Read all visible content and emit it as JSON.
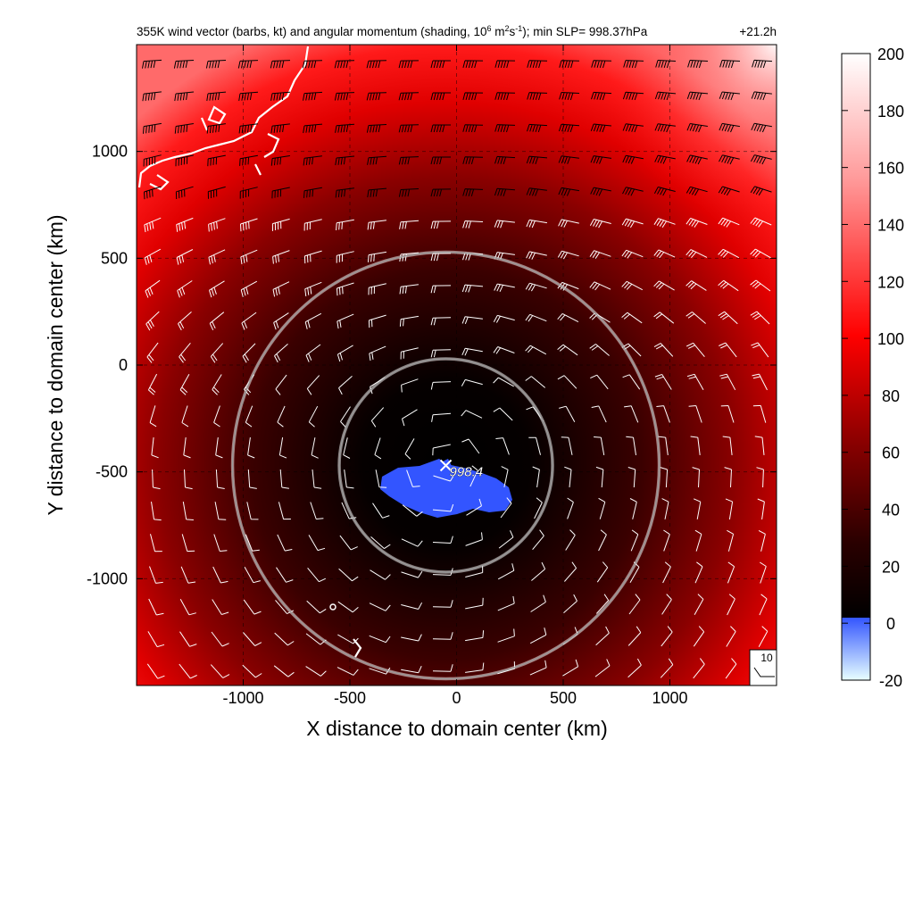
{
  "chart_data": {
    "type": "heatmap",
    "title_main": "355K wind vector (barbs, kt) and angular momentum (shading, 10",
    "title_exp1": "6",
    "title_mid1": " m",
    "title_exp2": "2",
    "title_mid2": "s",
    "title_exp3": "-1",
    "title_tail": "); min SLP= 998.37hPa",
    "time_label": "+21.2h",
    "xlabel": "X distance to domain center (km)",
    "ylabel": "Y distance to domain center (km)",
    "xlim": [
      -1500,
      1500
    ],
    "ylim": [
      -1500,
      1500
    ],
    "x_ticks": [
      -1000,
      -500,
      0,
      500,
      1000
    ],
    "y_ticks": [
      1000,
      500,
      0,
      -500,
      -1000
    ],
    "grid": true,
    "colorbar": {
      "range": [
        -20,
        200
      ],
      "ticks": [
        200,
        180,
        160,
        140,
        120,
        100,
        80,
        60,
        40,
        20,
        0,
        -20
      ],
      "placement": "right",
      "colors": {
        "white": "#ffffff",
        "red": "#ff0000",
        "black": "#000000",
        "blue": "#3355ff",
        "cyan": "#00ffff"
      }
    },
    "center": {
      "x": -50,
      "y": -470,
      "slp_label": "998.4",
      "marker": "x-mark"
    },
    "range_rings_km": [
      500,
      1000
    ],
    "barb_legend": {
      "value": "10",
      "units": "kt"
    },
    "coastline_color": "#ffffff",
    "negative_region_color": "#3355ff"
  }
}
